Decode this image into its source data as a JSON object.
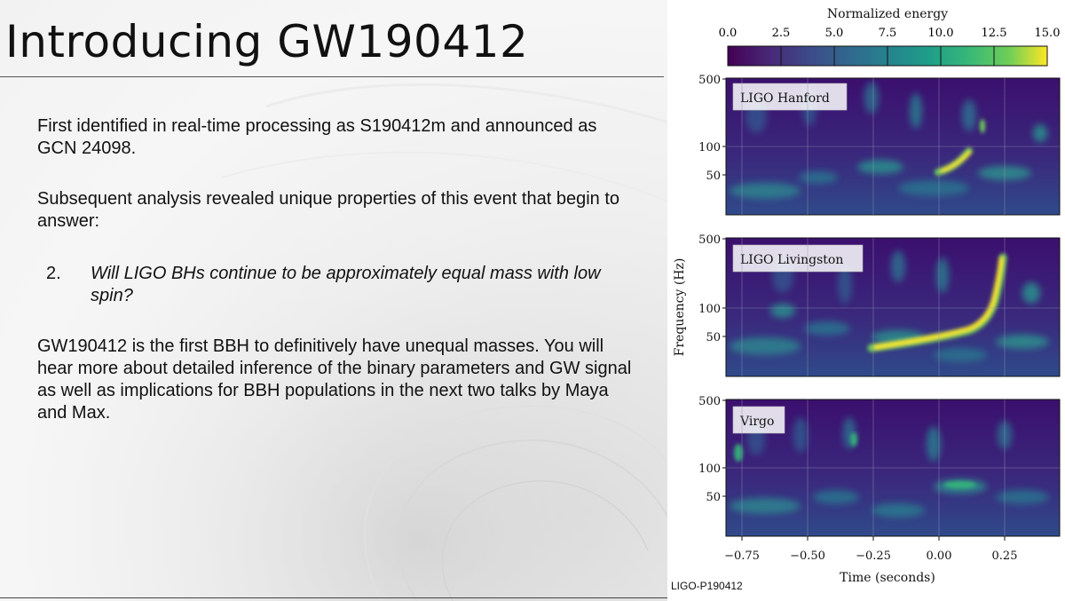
{
  "slide": {
    "title": "Introducing GW190412",
    "paragraphs": [
      "First identified in real-time processing as S190412m and announced as GCN 24098.",
      "Subsequent analysis revealed unique properties of this event that begin to answer:",
      "GW190412 is the first BBH to definitively have unequal masses.  You will hear more about detailed inference of the binary parameters and GW signal as well as implications for BBH populations in the next two talks by Maya and Max."
    ],
    "list_item": {
      "number": "2.",
      "text": "Will LIGO BHs continue to be approximately equal mass with low spin?"
    },
    "credit": "LIGO-P190412"
  },
  "figure": {
    "colorbar": {
      "label": "Normalized energy",
      "ticks": [
        "0.0",
        "2.5",
        "5.0",
        "7.5",
        "10.0",
        "12.5",
        "15.0"
      ],
      "range": [
        0,
        15
      ],
      "colormap": "viridis"
    },
    "ylabel": "Frequency (Hz)",
    "xlabel": "Time (seconds)",
    "yticks": [
      "500",
      "100",
      "50"
    ],
    "xticks": [
      "−0.75",
      "−0.50",
      "−0.25",
      "0.00",
      "0.25"
    ],
    "panels": [
      {
        "label": "LIGO Hanford"
      },
      {
        "label": "LIGO Livingston"
      },
      {
        "label": "Virgo"
      }
    ],
    "colors": {
      "viridis_low": "#440154",
      "viridis_mid": "#21918c",
      "viridis_high": "#fde725"
    }
  }
}
